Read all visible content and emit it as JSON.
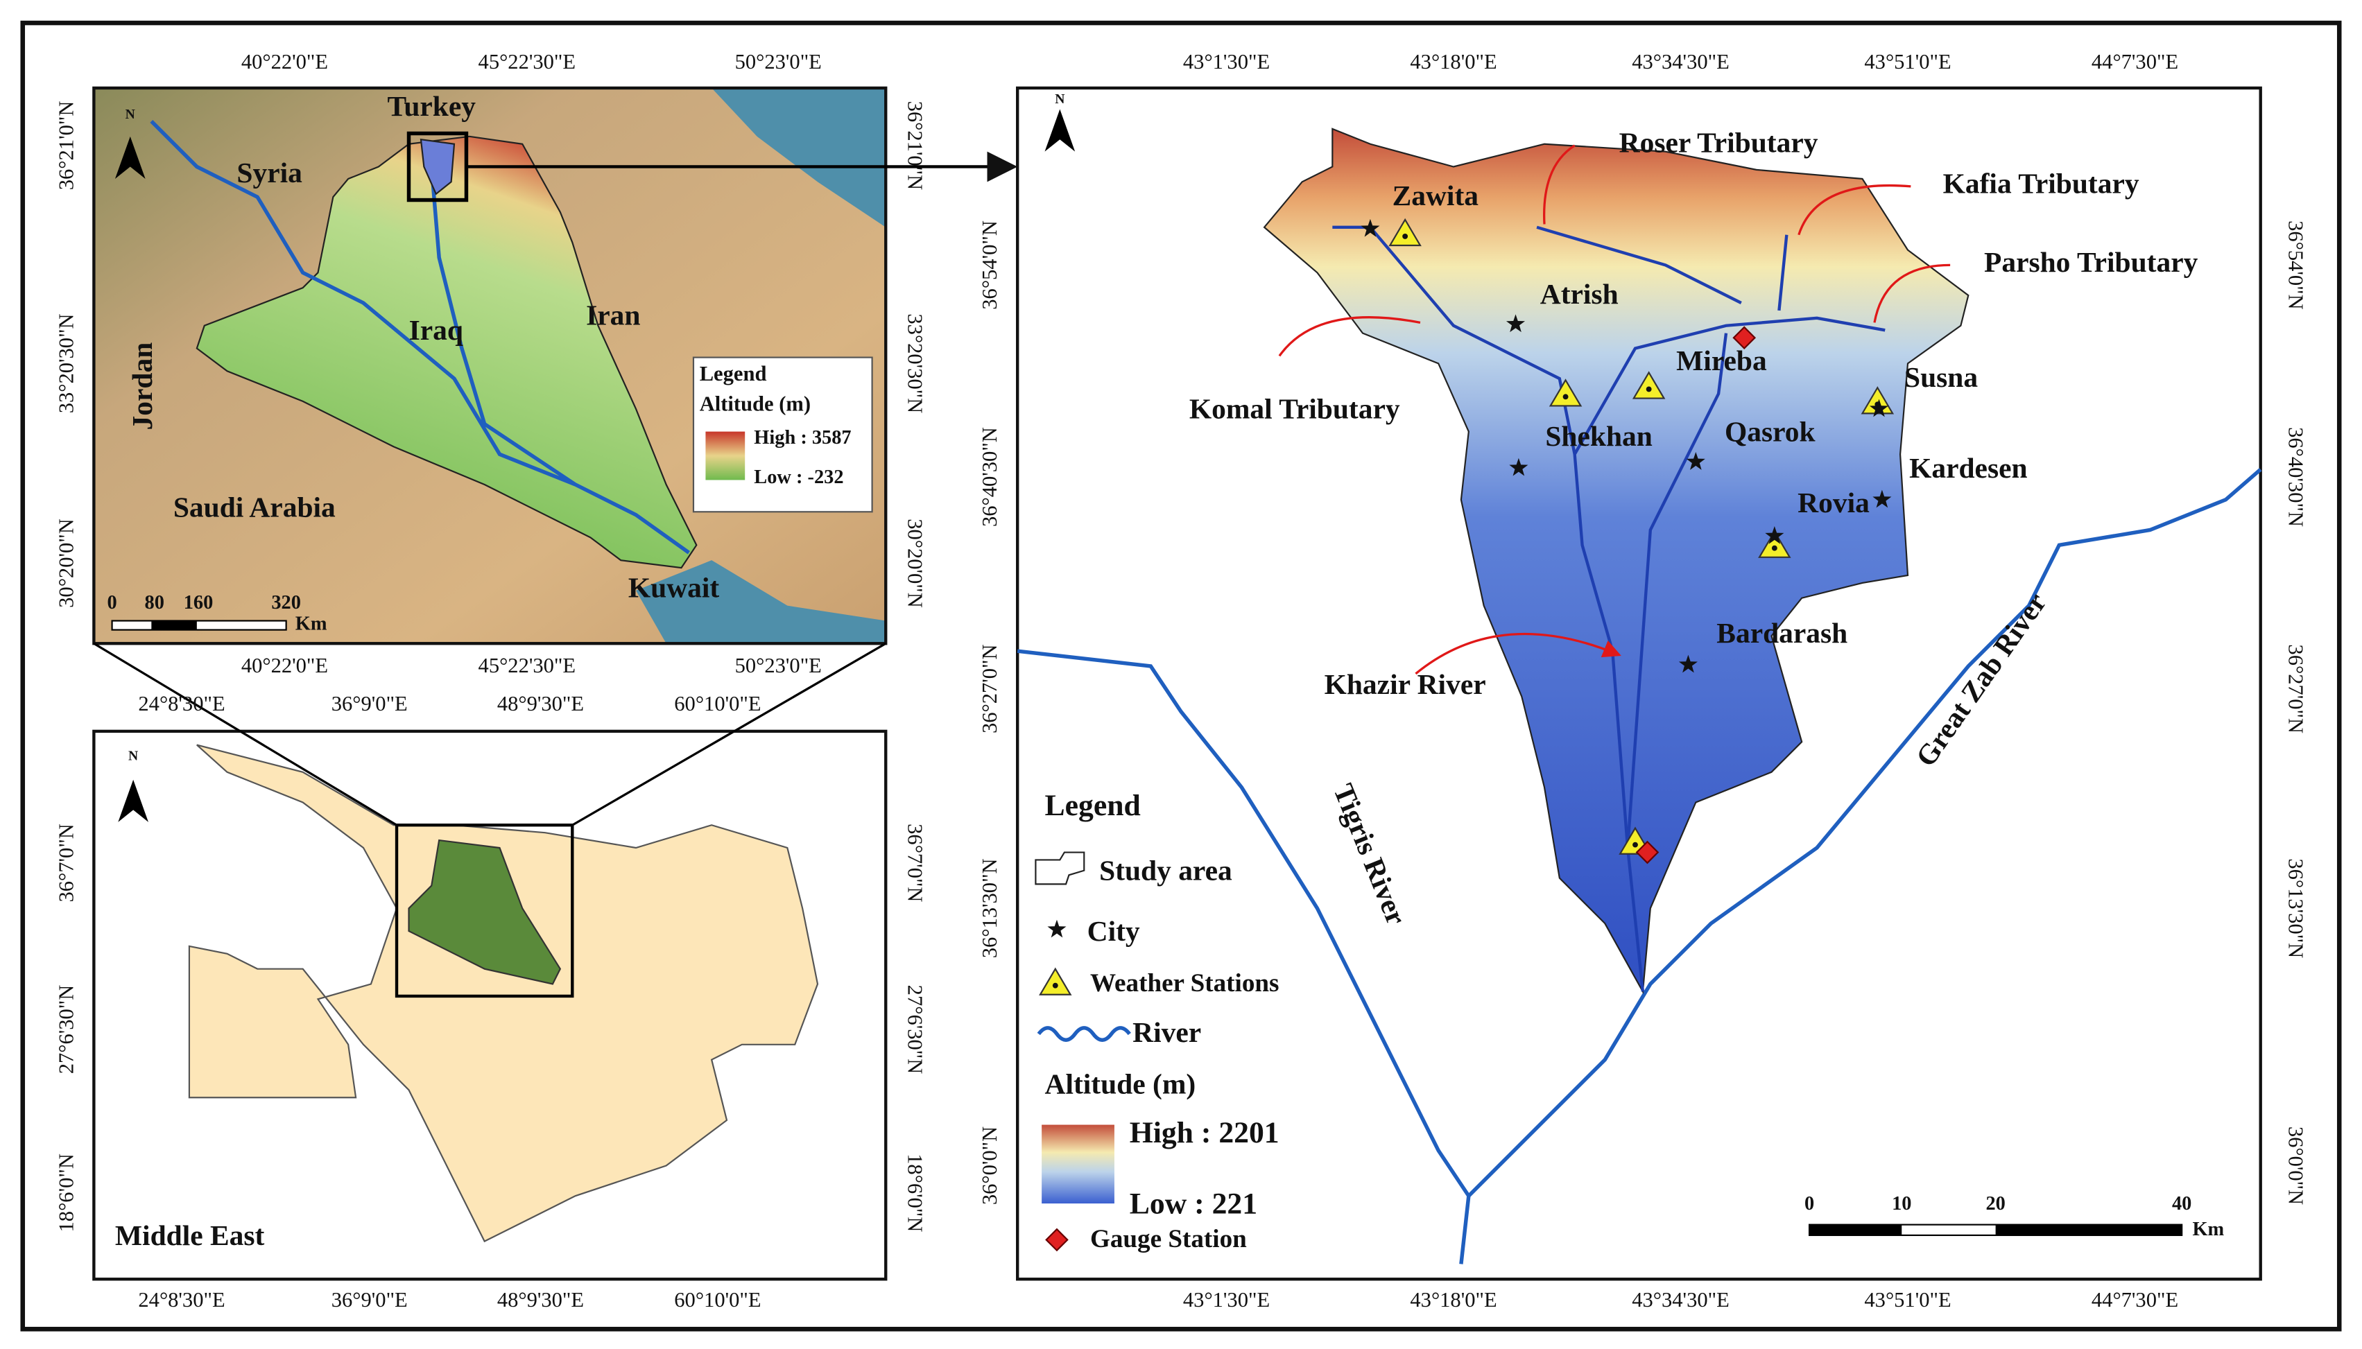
{
  "iraq_map": {
    "lon_labels": [
      "40°22'0\"E",
      "45°22'30\"E",
      "50°23'0\"E"
    ],
    "lat_labels": [
      "36°21'0\"N",
      "33°20'30\"N",
      "30°20'0\"N"
    ],
    "north": "N",
    "places": [
      "Turkey",
      "Syria",
      "Iraq",
      "Iran",
      "Jordan",
      "Saudi Arabia",
      "Kuwait"
    ],
    "legend": {
      "title": "Legend",
      "altitude": "Altitude (m)",
      "high": "High : 3587",
      "low": "Low : -232"
    },
    "scale": {
      "labels": [
        "0",
        "80",
        "160",
        "320"
      ],
      "unit": "Km"
    }
  },
  "middle_east_map": {
    "lon_labels": [
      "24°8'30\"E",
      "36°9'0\"E",
      "48°9'30\"E",
      "60°10'0\"E"
    ],
    "lat_labels": [
      "36°7'0\"N",
      "27°6'30\"N",
      "18°6'0\"N"
    ],
    "north": "N",
    "title": "Middle East"
  },
  "study_map": {
    "lon_labels": [
      "43°1'30\"E",
      "43°18'0\"E",
      "43°34'30\"E",
      "43°51'0\"E",
      "44°7'30\"E"
    ],
    "lat_labels": [
      "36°54'0\"N",
      "36°40'30\"N",
      "36°27'0\"N",
      "36°13'30\"N",
      "36°0'0\"N"
    ],
    "north": "N",
    "annotations": [
      "Roser Tributary",
      "Kafia Tributary",
      "Parsho Tributary",
      "Komal Tributary",
      "Khazir River"
    ],
    "rivers": [
      "Tigris River",
      "Great Zab River"
    ],
    "cities": [
      "Zawita",
      "Atrish",
      "Mireba",
      "Susna",
      "Shekhan",
      "Qasrok",
      "Kardesen",
      "Rovia",
      "Bardarash"
    ],
    "legend": {
      "title": "Legend",
      "study_area": "Study area",
      "city": "City",
      "weather": "Weather Stations",
      "river": "River",
      "altitude": "Altitude (m)",
      "high": "High : 2201",
      "low": "Low : 221",
      "gauge": "Gauge Station"
    },
    "scale": {
      "labels": [
        "0",
        "10",
        "20",
        "40"
      ],
      "unit": "Km"
    }
  }
}
